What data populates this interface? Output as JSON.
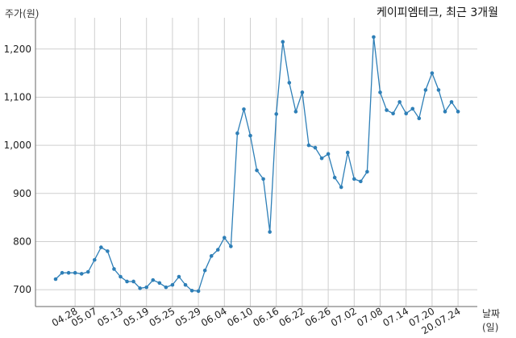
{
  "chart_data": {
    "type": "line",
    "title": "케이피엠테크, 최근 3개월",
    "ylabel": "주가(원)",
    "xlabel": "날짜(일)",
    "ylim": [
      665,
      1265
    ],
    "grid": true,
    "line_color": "#2e7fb7",
    "yticks": [
      700,
      800,
      900,
      1000,
      1100,
      1200
    ],
    "ytick_labels": [
      "700",
      "800",
      "900",
      "1,000",
      "1,100",
      "1,200"
    ],
    "xtick_labels": [
      "04.28",
      "05.07",
      "05.13",
      "05.19",
      "05.25",
      "05.29",
      "06.04",
      "06.10",
      "06.16",
      "06.22",
      "06.26",
      "07.02",
      "07.08",
      "07.14",
      "07.20",
      "20.07.24"
    ],
    "xtick_index": [
      3,
      6,
      10,
      14,
      18,
      22,
      26,
      30,
      34,
      38,
      42,
      46,
      50,
      54,
      58,
      62
    ],
    "values": [
      722,
      735,
      735,
      735,
      733,
      737,
      762,
      788,
      780,
      743,
      727,
      717,
      717,
      703,
      705,
      720,
      714,
      705,
      710,
      727,
      710,
      698,
      697,
      740,
      770,
      783,
      808,
      790,
      1025,
      1075,
      1020,
      948,
      930,
      820,
      1065,
      1215,
      1130,
      1070,
      1110,
      1000,
      995,
      973,
      982,
      933,
      913,
      985,
      930,
      925,
      945,
      1225,
      1110,
      1073,
      1066,
      1090,
      1066,
      1076,
      1056,
      1115,
      1150,
      1115,
      1070,
      1090,
      1070
    ]
  }
}
